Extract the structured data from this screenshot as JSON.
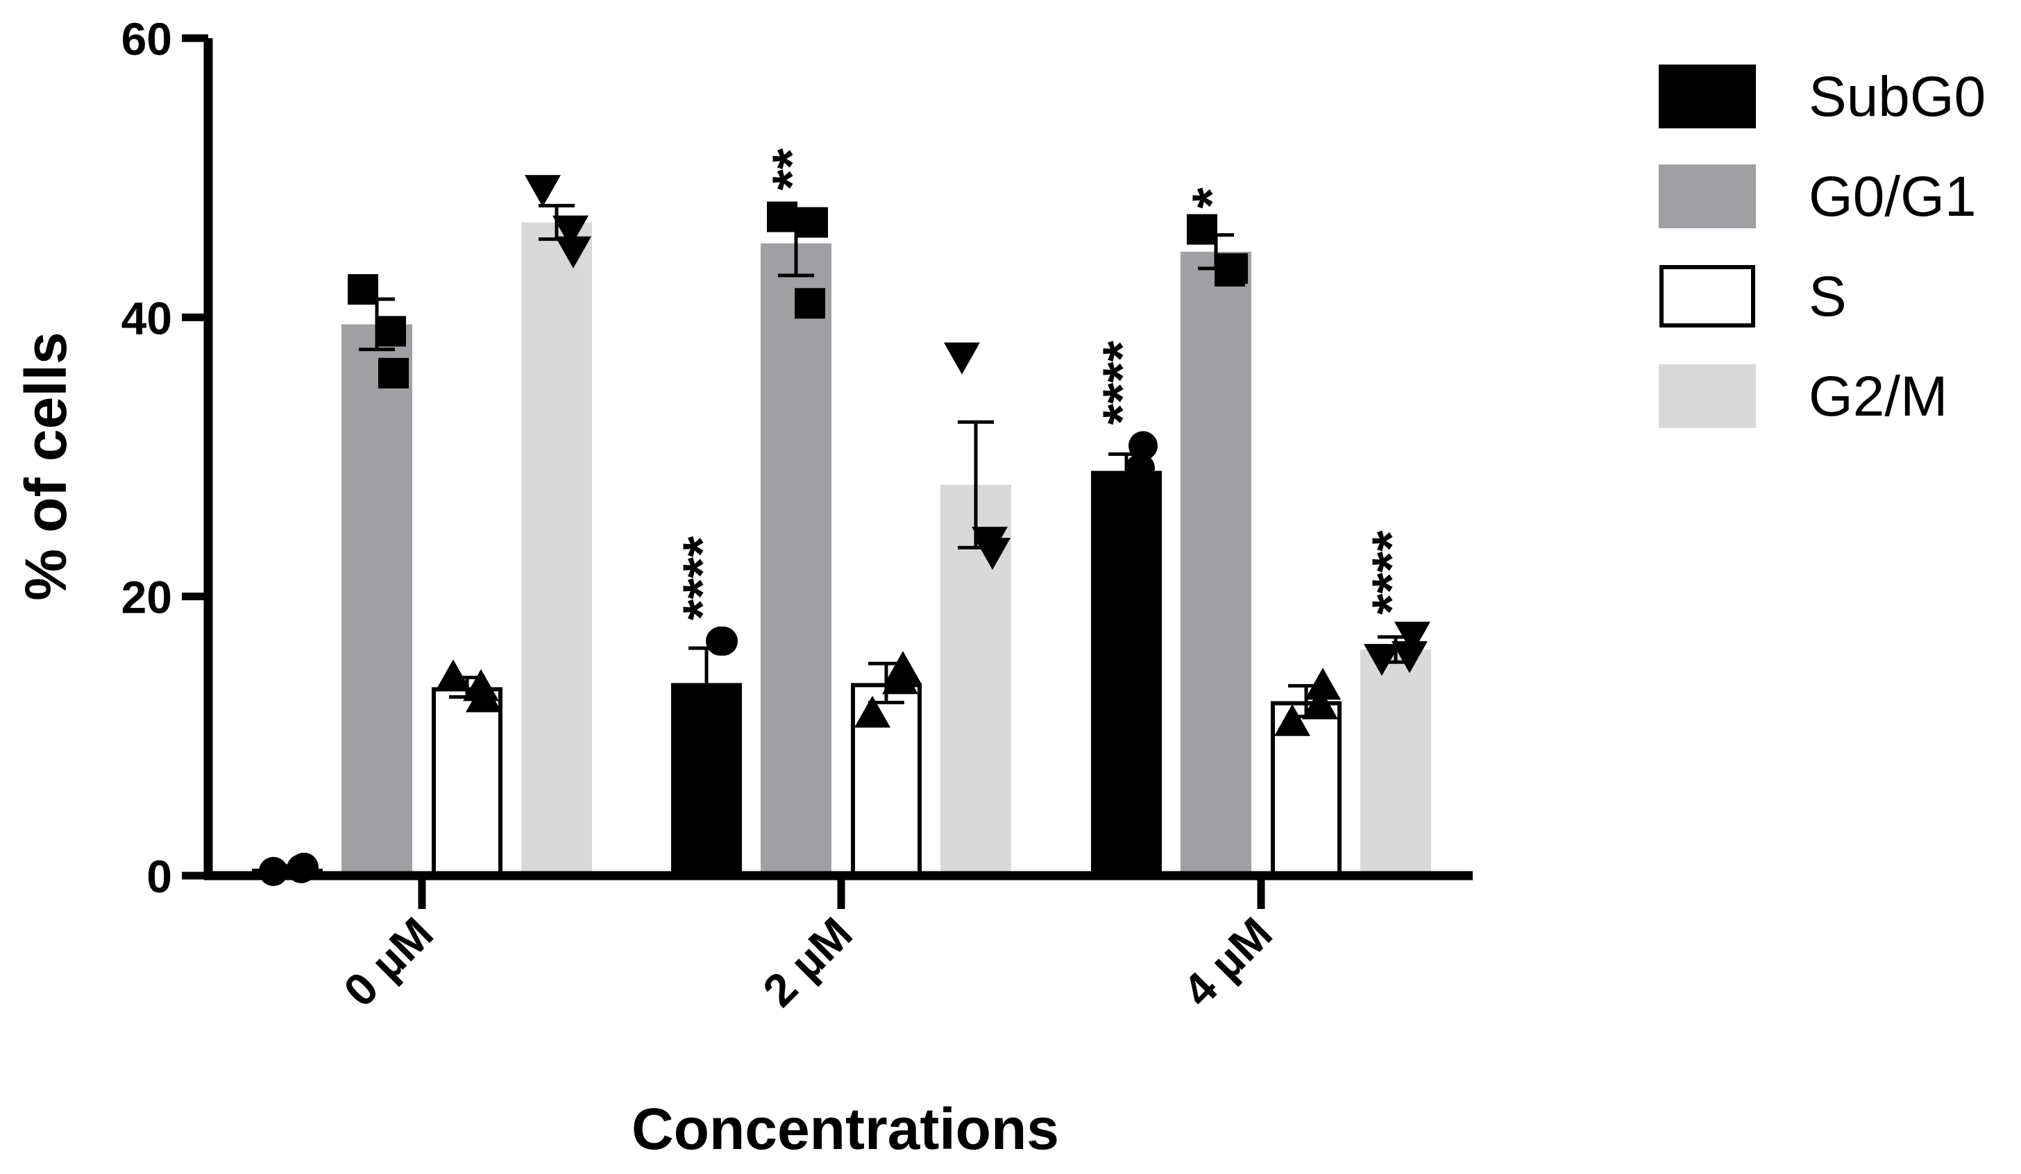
{
  "chart_data": {
    "type": "bar",
    "title": "",
    "xlabel": "Concentrations",
    "ylabel": "% of cells",
    "ylim": [
      0,
      60
    ],
    "yticks": [
      0,
      20,
      40,
      60
    ],
    "categories": [
      "0 µM",
      "2 µM",
      "4 µM"
    ],
    "legend_position": "top-right",
    "grid": false,
    "series": [
      {
        "name": "SubG0",
        "color": "#000000",
        "marker": "circle",
        "values": [
          0.5,
          13.8,
          29.0
        ],
        "errors": [
          0.2,
          2.5,
          1.2
        ],
        "points": [
          [
            0.3,
            0.6,
            0.5
          ],
          [
            11.0,
            16.8,
            16.8
          ],
          [
            27.0,
            30.8,
            29.2
          ]
        ],
        "significance": [
          "",
          "****",
          "****"
        ]
      },
      {
        "name": "G0/G1",
        "color": "#a0a0a4",
        "marker": "square",
        "values": [
          39.5,
          45.3,
          44.7
        ],
        "errors": [
          1.8,
          2.3,
          1.2
        ],
        "points": [
          [
            42.0,
            36.0,
            39.0
          ],
          [
            47.2,
            46.8,
            41.0
          ],
          [
            46.3,
            43.5,
            43.3
          ]
        ],
        "significance": [
          "",
          "**",
          "*"
        ]
      },
      {
        "name": "S",
        "color": "#ffffff",
        "marker": "triangle-up",
        "values": [
          13.5,
          13.8,
          12.5
        ],
        "errors": [
          0.7,
          1.4,
          1.1
        ],
        "points": [
          [
            14.2,
            12.7,
            13.5
          ],
          [
            11.6,
            14.8,
            14.0
          ],
          [
            11.0,
            13.6,
            12.2
          ]
        ],
        "significance": [
          "",
          "",
          ""
        ]
      },
      {
        "name": "G2/M",
        "color": "#d9d9d9",
        "marker": "triangle-down",
        "values": [
          46.8,
          28.0,
          16.2
        ],
        "errors": [
          1.2,
          4.5,
          0.9
        ],
        "points": [
          [
            49.2,
            44.8,
            46.3
          ],
          [
            37.2,
            23.2,
            24.0
          ],
          [
            15.6,
            17.2,
            15.8
          ]
        ],
        "significance": [
          "",
          "",
          "****"
        ]
      }
    ]
  }
}
